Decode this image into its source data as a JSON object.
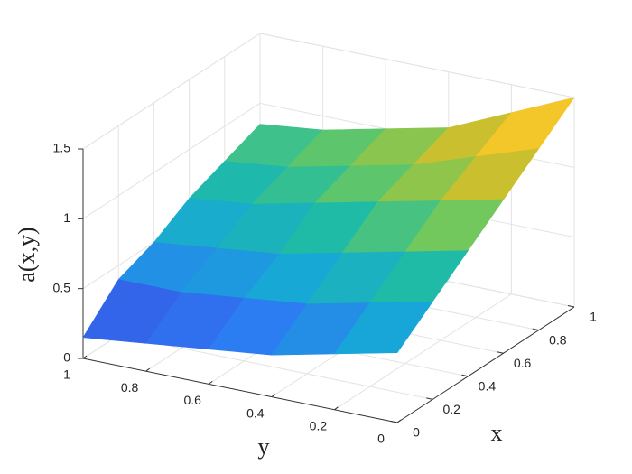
{
  "chart_data": {
    "type": "surface",
    "xlabel": "x",
    "ylabel": "y",
    "zlabel": "a(x,y)",
    "x": [
      0,
      0.2,
      0.4,
      0.6,
      0.8,
      1
    ],
    "y": [
      0,
      0.2,
      0.4,
      0.6,
      0.8,
      1
    ],
    "z": [
      [
        0.5,
        0.4,
        0.3,
        0.25,
        0.2,
        0.15
      ],
      [
        0.7,
        0.6,
        0.5,
        0.45,
        0.4,
        0.4
      ],
      [
        0.9,
        0.8,
        0.7,
        0.6,
        0.55,
        0.5
      ],
      [
        1.1,
        1.0,
        0.9,
        0.8,
        0.7,
        0.65
      ],
      [
        1.3,
        1.15,
        1.0,
        0.9,
        0.8,
        0.75
      ],
      [
        1.5,
        1.3,
        1.1,
        1.0,
        0.9,
        0.85
      ]
    ],
    "xlim": [
      0,
      1
    ],
    "ylim": [
      0,
      1
    ],
    "zlim": [
      0,
      1.5
    ],
    "xticks": [
      0,
      0.2,
      0.4,
      0.6,
      0.8,
      1
    ],
    "yticks": [
      0,
      0.2,
      0.4,
      0.6,
      0.8,
      1
    ],
    "zticks": [
      0,
      0.5,
      1,
      1.5
    ],
    "grid": true,
    "colormap": [
      "#3e26a8",
      "#3a4be0",
      "#2c7cf2",
      "#17a8d6",
      "#1fbba6",
      "#6cc95f",
      "#c7c02f",
      "#f3c72a",
      "#f9fb15"
    ]
  }
}
